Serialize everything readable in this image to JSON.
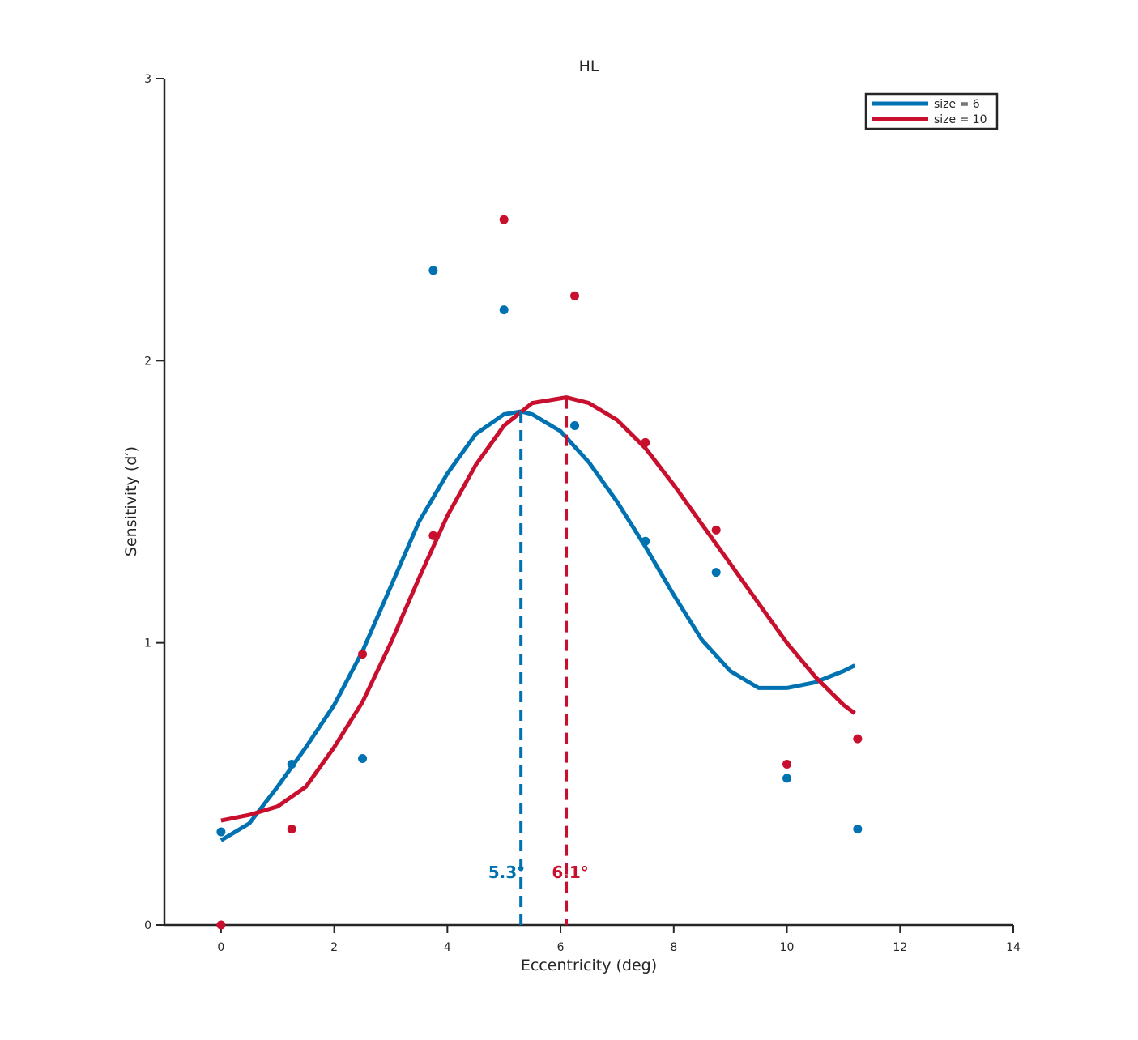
{
  "chart_data": {
    "type": "scatter",
    "title": "HL",
    "xlabel": "Eccentricity (deg)",
    "ylabel": "Sensitivity (d′)",
    "xlim": [
      -1,
      14
    ],
    "ylim": [
      0,
      3
    ],
    "xticks": [
      0,
      2,
      4,
      6,
      8,
      10,
      12,
      14
    ],
    "yticks": [
      0,
      1,
      2,
      3
    ],
    "grid": false,
    "legend_position": "top-right",
    "series": [
      {
        "name": "size = 6",
        "color": "#0072B2",
        "points": {
          "x": [
            0,
            1.25,
            2.5,
            3.75,
            5.0,
            6.25,
            7.5,
            8.75,
            10.0,
            11.25
          ],
          "y": [
            0.33,
            0.57,
            0.59,
            2.32,
            2.18,
            1.77,
            1.36,
            1.25,
            0.52,
            0.34
          ]
        },
        "fit": {
          "x": [
            0,
            0.5,
            1.0,
            1.5,
            2.0,
            2.5,
            3.0,
            3.5,
            4.0,
            4.5,
            5.0,
            5.3,
            5.5,
            6.0,
            6.5,
            7.0,
            7.5,
            8.0,
            8.5,
            9.0,
            9.5,
            10.0,
            10.5,
            11.0,
            11.2
          ],
          "y": [
            0.3,
            0.36,
            0.49,
            0.63,
            0.78,
            0.97,
            1.2,
            1.43,
            1.6,
            1.74,
            1.81,
            1.82,
            1.81,
            1.75,
            1.64,
            1.5,
            1.34,
            1.17,
            1.01,
            0.9,
            0.84,
            0.84,
            0.86,
            0.9,
            0.92
          ]
        },
        "peak": {
          "x": 5.3,
          "label": "5.3°"
        }
      },
      {
        "name": "size = 10",
        "color": "#C8102E",
        "points": {
          "x": [
            0,
            1.25,
            2.5,
            3.75,
            5.0,
            6.25,
            7.5,
            8.75,
            10.0,
            11.25
          ],
          "y": [
            0.0,
            0.34,
            0.96,
            1.38,
            2.5,
            2.23,
            1.71,
            1.4,
            0.57,
            0.66
          ]
        },
        "fit": {
          "x": [
            0,
            0.5,
            1.0,
            1.5,
            2.0,
            2.5,
            3.0,
            3.5,
            4.0,
            4.5,
            5.0,
            5.5,
            6.1,
            6.5,
            7.0,
            7.5,
            8.0,
            8.5,
            9.0,
            9.5,
            10.0,
            10.5,
            11.0,
            11.2
          ],
          "y": [
            0.37,
            0.39,
            0.42,
            0.49,
            0.63,
            0.79,
            1.0,
            1.23,
            1.45,
            1.63,
            1.77,
            1.85,
            1.87,
            1.85,
            1.79,
            1.69,
            1.56,
            1.42,
            1.28,
            1.14,
            1.0,
            0.88,
            0.78,
            0.75
          ]
        },
        "peak": {
          "x": 6.1,
          "label": "6.1°"
        }
      }
    ]
  }
}
